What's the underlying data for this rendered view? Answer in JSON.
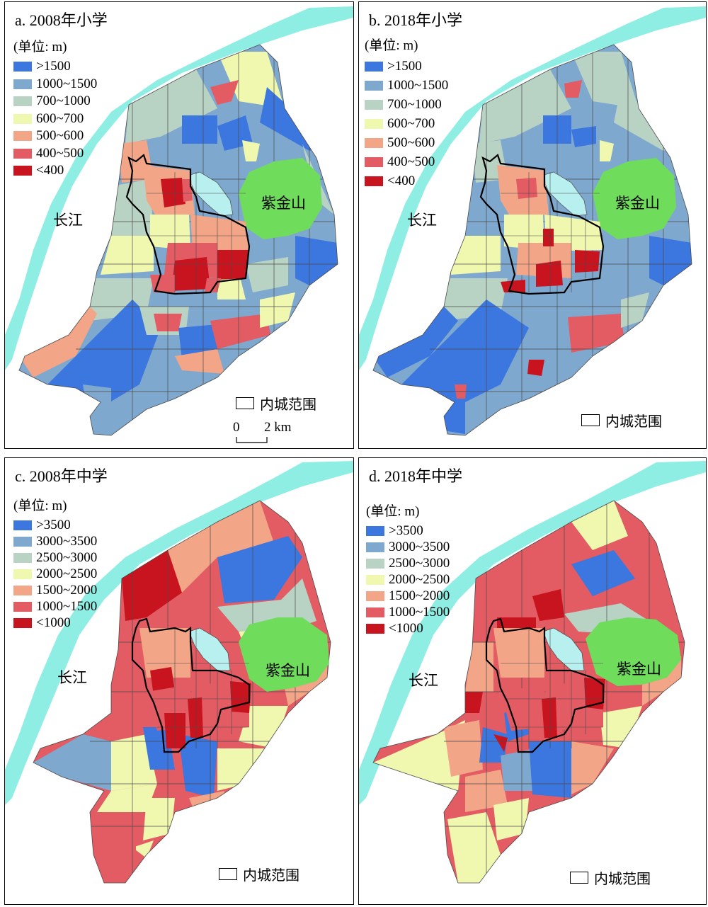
{
  "colors": {
    "river": "#8eeee4",
    "mountain": "#6fdc5c",
    "lake": "#b8f0ef",
    "boundary": "#000000",
    "district_line": "#4a4a4a"
  },
  "labels": {
    "river": "长江",
    "mountain": "紫金山",
    "inner_city": "内城范围"
  },
  "scalebar": {
    "zero": "0",
    "end": "2 km"
  },
  "panels": [
    {
      "title": "a. 2008年小学",
      "unit": "(单位: m)",
      "legend": [
        {
          "label": ">1500",
          "color": "#3c76df"
        },
        {
          "label": "1000~1500",
          "color": "#7fa8cf"
        },
        {
          "label": "700~1000",
          "color": "#b8d3c4"
        },
        {
          "label": "600~700",
          "color": "#f0f8b0"
        },
        {
          "label": "500~600",
          "color": "#f2a587"
        },
        {
          "label": "400~500",
          "color": "#e35b63"
        },
        {
          "label": "<400",
          "color": "#c8141e"
        }
      ]
    },
    {
      "title": "b. 2018年小学",
      "unit": "(单位: m)",
      "legend": [
        {
          "label": ">1500",
          "color": "#3c76df"
        },
        {
          "label": "1000~1500",
          "color": "#7fa8cf"
        },
        {
          "label": "700~1000",
          "color": "#b8d3c4"
        },
        {
          "label": "600~700",
          "color": "#f0f8b0"
        },
        {
          "label": "500~600",
          "color": "#f2a587"
        },
        {
          "label": "400~500",
          "color": "#e35b63"
        },
        {
          "label": "<400",
          "color": "#c8141e"
        }
      ]
    },
    {
      "title": "c. 2008年中学",
      "unit": "(单位: m)",
      "legend": [
        {
          "label": ">3500",
          "color": "#3c76df"
        },
        {
          "label": "3000~3500",
          "color": "#7fa8cf"
        },
        {
          "label": "2500~3000",
          "color": "#b8d3c4"
        },
        {
          "label": "2000~2500",
          "color": "#f0f8b0"
        },
        {
          "label": "1500~2000",
          "color": "#f2a587"
        },
        {
          "label": "1000~1500",
          "color": "#e35b63"
        },
        {
          "label": "<1000",
          "color": "#c8141e"
        }
      ]
    },
    {
      "title": "d. 2018年中学",
      "unit": "(单位: m)",
      "legend": [
        {
          "label": ">3500",
          "color": "#3c76df"
        },
        {
          "label": "3000~3500",
          "color": "#7fa8cf"
        },
        {
          "label": "2500~3000",
          "color": "#b8d3c4"
        },
        {
          "label": "2000~2500",
          "color": "#f0f8b0"
        },
        {
          "label": "1500~2000",
          "color": "#f2a587"
        },
        {
          "label": "1000~1500",
          "color": "#e35b63"
        },
        {
          "label": "<1000",
          "color": "#c8141e"
        }
      ]
    }
  ]
}
